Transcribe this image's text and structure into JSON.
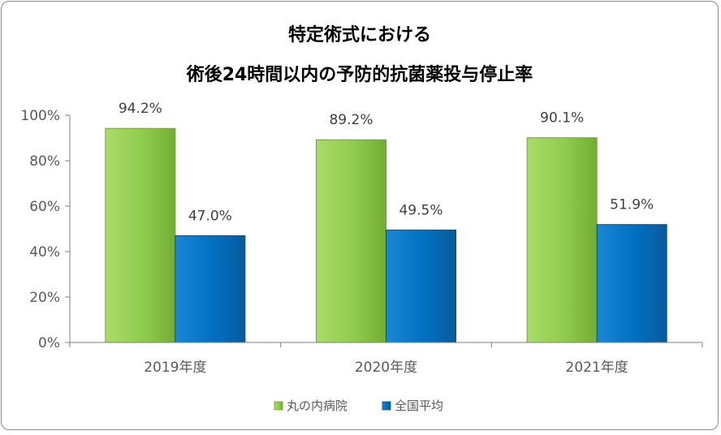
{
  "chart_data": {
    "type": "bar",
    "title_lines": [
      "特定術式における",
      "術後24時間以内の予防的抗菌薬投与停止率"
    ],
    "categories": [
      "2019年度",
      "2020年度",
      "2021年度"
    ],
    "series": [
      {
        "name": "丸の内病院",
        "values": [
          94.2,
          89.2,
          90.1
        ],
        "labels": [
          "94.2%",
          "89.2%",
          "90.1%"
        ],
        "color": "#92d050",
        "color_dark": "#6ea52e"
      },
      {
        "name": "全国平均",
        "values": [
          47.0,
          49.5,
          51.9
        ],
        "labels": [
          "47.0%",
          "49.5%",
          "51.9%"
        ],
        "color": "#0070c0",
        "color_dark": "#0a4f8a"
      }
    ],
    "yticks": [
      "0%",
      "20%",
      "40%",
      "60%",
      "80%",
      "100%"
    ],
    "ylim": [
      0,
      100
    ],
    "grid": false,
    "legend_position": "bottom"
  }
}
